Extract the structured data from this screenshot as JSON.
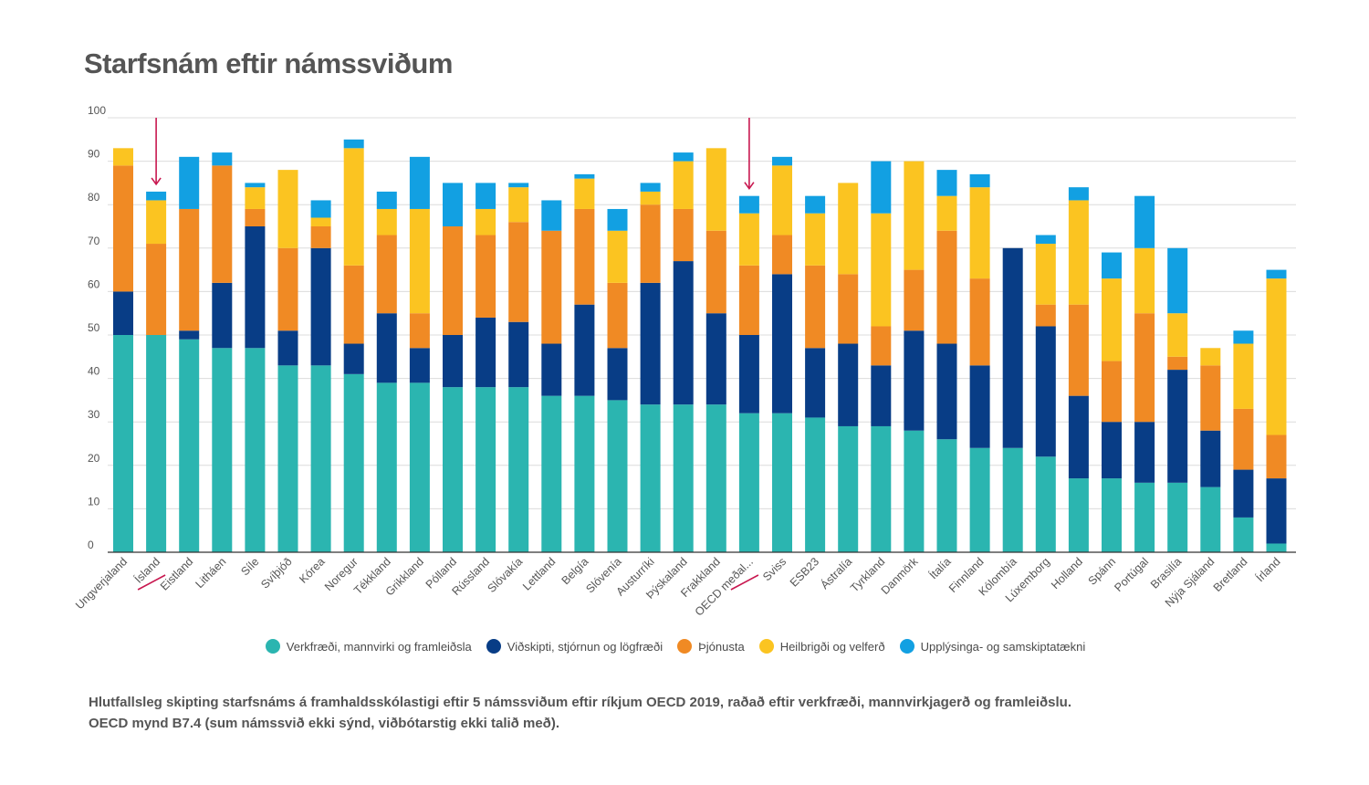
{
  "title": "Starfsnám eftir námssviðum",
  "caption": {
    "line1": "Hlutfallsleg skipting starfsnáms á framhaldsskólastigi eftir 5 námssviðum eftir ríkjum OECD 2019, raðað eftir verkfræði, mannvirkjagerð og framleiðslu.",
    "line2": "OECD mynd B7.4 (sum námssvið ekki sýnd, viðbótarstig ekki talið með)."
  },
  "legend": [
    {
      "label": "Verkfræði, mannvirki og framleiðsla",
      "color": "#2bb5b0"
    },
    {
      "label": "Viðskipti, stjórnun og lögfræði",
      "color": "#083d86"
    },
    {
      "label": "Þjónusta",
      "color": "#f08a24"
    },
    {
      "label": "Heilbrigði og velferð",
      "color": "#fbc421"
    },
    {
      "label": "Upplýsinga- og samskiptatækni",
      "color": "#12a0e2"
    }
  ],
  "highlight_color": "#c8174f",
  "chart_data": {
    "type": "bar",
    "stacked": true,
    "ylim": [
      0,
      100
    ],
    "yticks": [
      0,
      10,
      20,
      30,
      40,
      50,
      60,
      70,
      80,
      90,
      100
    ],
    "grid": true,
    "legend_position": "bottom",
    "categories": [
      "Ungverjaland",
      "Ísland",
      "Eistland",
      "Litháen",
      "Síle",
      "Svíþjóð",
      "Kórea",
      "Noregur",
      "Tékkland",
      "Grikkland",
      "Pólland",
      "Rússland",
      "Slóvakía",
      "Lettland",
      "Belgía",
      "Slóvenía",
      "Austurríki",
      "Þýskaland",
      "Frakkland",
      "OECD meðal...",
      "Sviss",
      "ESB23",
      "Ástralía",
      "Tyrkland",
      "Danmörk",
      "Ítalía",
      "Finnland",
      "Kólombía",
      "Lúxemborg",
      "Holland",
      "Spánn",
      "Portúgal",
      "Brasilía",
      "Nýja Sjáland",
      "Bretland",
      "Írland"
    ],
    "highlighted": [
      "Ísland",
      "OECD meðal..."
    ],
    "series": [
      {
        "name": "Verkfræði, mannvirki og framleiðsla",
        "values": [
          50,
          50,
          49,
          47,
          47,
          43,
          43,
          41,
          39,
          39,
          38,
          38,
          38,
          36,
          36,
          35,
          34,
          34,
          34,
          32,
          32,
          31,
          29,
          29,
          28,
          26,
          24,
          24,
          22,
          17,
          17,
          16,
          16,
          15,
          8,
          2
        ]
      },
      {
        "name": "Viðskipti, stjórnun og lögfræði",
        "values": [
          10,
          0,
          2,
          15,
          28,
          8,
          27,
          7,
          16,
          8,
          12,
          16,
          15,
          12,
          21,
          12,
          28,
          33,
          21,
          18,
          32,
          16,
          19,
          14,
          23,
          22,
          19,
          46,
          30,
          19,
          13,
          14,
          26,
          13,
          11,
          15
        ]
      },
      {
        "name": "Þjónusta",
        "values": [
          29,
          21,
          28,
          27,
          4,
          19,
          5,
          18,
          18,
          8,
          25,
          19,
          23,
          26,
          22,
          15,
          18,
          12,
          19,
          16,
          9,
          19,
          16,
          9,
          14,
          26,
          20,
          0,
          5,
          21,
          14,
          25,
          3,
          15,
          14,
          10
        ]
      },
      {
        "name": "Heilbrigði og velferð",
        "values": [
          4,
          10,
          0,
          0,
          5,
          18,
          2,
          27,
          6,
          24,
          0,
          6,
          8,
          0,
          7,
          12,
          3,
          11,
          19,
          12,
          16,
          12,
          21,
          26,
          25,
          8,
          21,
          0,
          14,
          24,
          19,
          15,
          10,
          4,
          15,
          36
        ]
      },
      {
        "name": "Upplýsinga- og samskiptatækni",
        "values": [
          0,
          2,
          12,
          3,
          1,
          0,
          4,
          2,
          4,
          12,
          10,
          6,
          1,
          7,
          1,
          5,
          2,
          2,
          0,
          4,
          2,
          4,
          0,
          12,
          0,
          6,
          3,
          0,
          2,
          3,
          6,
          12,
          15,
          0,
          3,
          2
        ]
      }
    ]
  }
}
